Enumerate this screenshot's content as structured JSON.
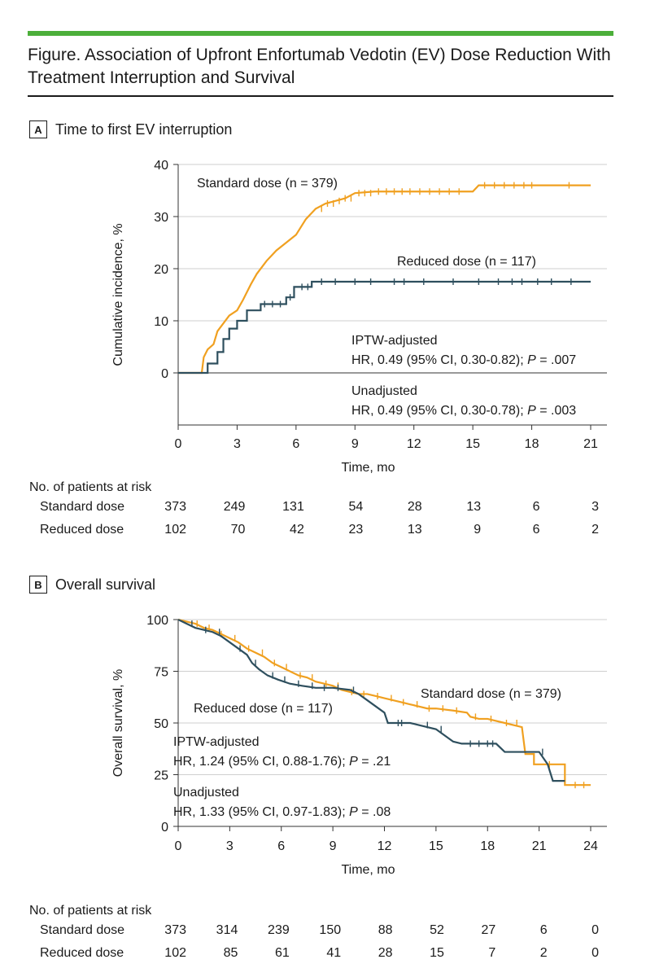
{
  "title": "Figure. Association of Upfront Enfortumab Vedotin (EV) Dose Reduction With Treatment Interruption and Survival",
  "colors": {
    "standard": "#f0a020",
    "reduced": "#2e4f5e",
    "accent_bar": "#4caf3a"
  },
  "chart_data": [
    {
      "type": "line",
      "panel_letter": "A",
      "panel_title": "Time to first EV interruption",
      "xlabel": "Time, mo",
      "ylabel": "Cumulative incidence, %",
      "xlim": [
        0,
        21
      ],
      "ylim": [
        -10,
        40
      ],
      "xticks": [
        0,
        3,
        6,
        9,
        12,
        15,
        18,
        21
      ],
      "yticks": [
        0,
        10,
        20,
        30,
        40
      ],
      "grid": true,
      "series": [
        {
          "name": "Standard dose (n = 379)",
          "color": "standard",
          "points": [
            [
              0,
              0
            ],
            [
              1.2,
              0
            ],
            [
              1.3,
              3
            ],
            [
              1.5,
              4.5
            ],
            [
              1.8,
              5.5
            ],
            [
              2.0,
              8
            ],
            [
              2.3,
              9.5
            ],
            [
              2.6,
              11
            ],
            [
              3,
              12
            ],
            [
              3.3,
              14
            ],
            [
              3.7,
              17
            ],
            [
              4,
              19
            ],
            [
              4.5,
              21.5
            ],
            [
              5,
              23.5
            ],
            [
              5.5,
              25
            ],
            [
              6,
              26.5
            ],
            [
              6.5,
              29.5
            ],
            [
              7,
              31.5
            ],
            [
              7.5,
              32.5
            ],
            [
              8,
              33
            ],
            [
              8.5,
              33.5
            ],
            [
              9,
              34.5
            ],
            [
              10,
              34.8
            ],
            [
              15,
              34.8
            ],
            [
              15.3,
              36
            ],
            [
              21,
              36
            ]
          ],
          "censor_x": [
            7.3,
            7.6,
            7.9,
            8.2,
            8.5,
            8.8,
            9.2,
            9.5,
            9.8,
            10.2,
            10.6,
            11,
            11.4,
            11.8,
            12.3,
            12.8,
            13.3,
            13.8,
            14.3,
            15.6,
            16.1,
            16.6,
            17.1,
            17.6,
            18,
            19.9
          ]
        },
        {
          "name": "Reduced dose (n = 117)",
          "color": "reduced",
          "points": [
            [
              0,
              0
            ],
            [
              1.5,
              0
            ],
            [
              1.5,
              1.8
            ],
            [
              2,
              1.8
            ],
            [
              2,
              4
            ],
            [
              2.3,
              4
            ],
            [
              2.3,
              6.5
            ],
            [
              2.6,
              6.5
            ],
            [
              2.6,
              8.5
            ],
            [
              3,
              8.5
            ],
            [
              3,
              10
            ],
            [
              3.5,
              10
            ],
            [
              3.5,
              12
            ],
            [
              4.2,
              12
            ],
            [
              4.2,
              13.2
            ],
            [
              5.5,
              13.2
            ],
            [
              5.5,
              14.5
            ],
            [
              5.9,
              14.5
            ],
            [
              5.9,
              16.5
            ],
            [
              6.8,
              16.5
            ],
            [
              6.8,
              17.5
            ],
            [
              21,
              17.5
            ]
          ],
          "censor_x": [
            4.4,
            4.8,
            5.2,
            5.7,
            6.3,
            6.6,
            7.3,
            8,
            9,
            9.8,
            11,
            11.5,
            12.5,
            14,
            15.3,
            16.3,
            17,
            17.5,
            18.3,
            19,
            20
          ]
        }
      ],
      "annotations": [
        {
          "line1": "IPTW-adjusted",
          "line2_pre": "HR, 0.49 (95% CI, 0.30-0.82); ",
          "p_italic": "P",
          "line2_post": " = .007"
        },
        {
          "line1": "Unadjusted",
          "line2_pre": "HR, 0.49 (95% CI, 0.30-0.78); ",
          "p_italic": "P",
          "line2_post": " = .003"
        }
      ],
      "risk_table": {
        "heading": "No. of patients at risk",
        "rows": [
          {
            "label": "Standard dose",
            "values": [
              373,
              249,
              131,
              54,
              28,
              13,
              6,
              3
            ]
          },
          {
            "label": "Reduced dose",
            "values": [
              102,
              70,
              42,
              23,
              13,
              9,
              6,
              2
            ]
          }
        ]
      }
    },
    {
      "type": "line",
      "panel_letter": "B",
      "panel_title": "Overall survival",
      "xlabel": "Time, mo",
      "ylabel": "Overall survival, %",
      "xlim": [
        0,
        24
      ],
      "ylim": [
        -5,
        100
      ],
      "xticks": [
        0,
        3,
        6,
        9,
        12,
        15,
        18,
        21,
        24
      ],
      "yticks": [
        0,
        25,
        50,
        75,
        100
      ],
      "grid": true,
      "series": [
        {
          "name": "Standard dose (n = 379)",
          "color": "standard",
          "points": [
            [
              0,
              100
            ],
            [
              0.5,
              99
            ],
            [
              1,
              98
            ],
            [
              1.5,
              96
            ],
            [
              2,
              95
            ],
            [
              2.5,
              93
            ],
            [
              3,
              91
            ],
            [
              3.5,
              89
            ],
            [
              4,
              86
            ],
            [
              4.5,
              84
            ],
            [
              5,
              82
            ],
            [
              5.5,
              79
            ],
            [
              6,
              77
            ],
            [
              6.5,
              75
            ],
            [
              7,
              73
            ],
            [
              7.5,
              72
            ],
            [
              8,
              70
            ],
            [
              8.5,
              69
            ],
            [
              9,
              68
            ],
            [
              9.5,
              66
            ],
            [
              10,
              65
            ],
            [
              10.5,
              64
            ],
            [
              11,
              64
            ],
            [
              11.5,
              63
            ],
            [
              12,
              62
            ],
            [
              12.5,
              61
            ],
            [
              13,
              60
            ],
            [
              13.5,
              59
            ],
            [
              14,
              58
            ],
            [
              14.5,
              57
            ],
            [
              15,
              57
            ],
            [
              16,
              56
            ],
            [
              16.8,
              55
            ],
            [
              17,
              53
            ],
            [
              17.5,
              52
            ],
            [
              18,
              52
            ],
            [
              19,
              50
            ],
            [
              20,
              48
            ],
            [
              20.2,
              35
            ],
            [
              20.7,
              35
            ],
            [
              20.7,
              30
            ],
            [
              22.5,
              30
            ],
            [
              22.5,
              20
            ],
            [
              24,
              20
            ]
          ],
          "censor_x": [
            1.1,
            1.8,
            2.5,
            3.3,
            4.1,
            4.9,
            5.6,
            6.3,
            7.1,
            7.8,
            8.6,
            9.3,
            10.1,
            10.8,
            11.6,
            12.4,
            13.1,
            13.9,
            14.6,
            15.4,
            16.2,
            17.3,
            18.2,
            19.1,
            19.7,
            21.6,
            23.1,
            23.6
          ]
        },
        {
          "name": "Reduced dose (n = 117)",
          "color": "reduced",
          "points": [
            [
              0,
              100
            ],
            [
              0.5,
              98
            ],
            [
              1,
              96
            ],
            [
              1.5,
              95
            ],
            [
              2,
              94
            ],
            [
              2.5,
              92
            ],
            [
              3,
              89
            ],
            [
              3.5,
              86
            ],
            [
              4,
              83
            ],
            [
              4.3,
              79
            ],
            [
              4.7,
              76
            ],
            [
              5.2,
              73
            ],
            [
              5.8,
              71
            ],
            [
              6.5,
              69
            ],
            [
              7.2,
              68
            ],
            [
              8,
              67
            ],
            [
              9,
              67
            ],
            [
              10,
              66
            ],
            [
              10.5,
              64
            ],
            [
              11,
              61
            ],
            [
              11.5,
              58
            ],
            [
              12,
              55
            ],
            [
              12.2,
              50
            ],
            [
              13.5,
              50
            ],
            [
              14,
              49
            ],
            [
              15,
              47
            ],
            [
              15.5,
              44
            ],
            [
              16,
              41
            ],
            [
              16.5,
              40
            ],
            [
              18.5,
              40
            ],
            [
              19,
              36
            ],
            [
              21,
              36
            ],
            [
              21.5,
              30
            ],
            [
              21.8,
              22
            ],
            [
              22.5,
              22
            ]
          ],
          "censor_x": [
            0.8,
            1.6,
            2.4,
            3.6,
            4.5,
            5.5,
            6.2,
            7,
            7.8,
            8.5,
            9.3,
            10.2,
            12.8,
            13,
            14.5,
            15.3,
            17,
            17.5,
            18,
            18.3,
            21.2
          ]
        }
      ],
      "annotations": [
        {
          "line1": "IPTW-adjusted",
          "line2_pre": "HR, 1.24 (95% CI, 0.88-1.76); ",
          "p_italic": "P",
          "line2_post": " = .21"
        },
        {
          "line1": "Unadjusted",
          "line2_pre": "HR, 1.33 (95% CI, 0.97-1.83); ",
          "p_italic": "P",
          "line2_post": " = .08"
        }
      ],
      "risk_table": {
        "heading": "No. of patients at risk",
        "rows": [
          {
            "label": "Standard dose",
            "values": [
              373,
              314,
              239,
              150,
              88,
              52,
              27,
              6,
              0
            ]
          },
          {
            "label": "Reduced dose",
            "values": [
              102,
              85,
              61,
              41,
              28,
              15,
              7,
              2,
              0
            ]
          }
        ]
      }
    }
  ]
}
